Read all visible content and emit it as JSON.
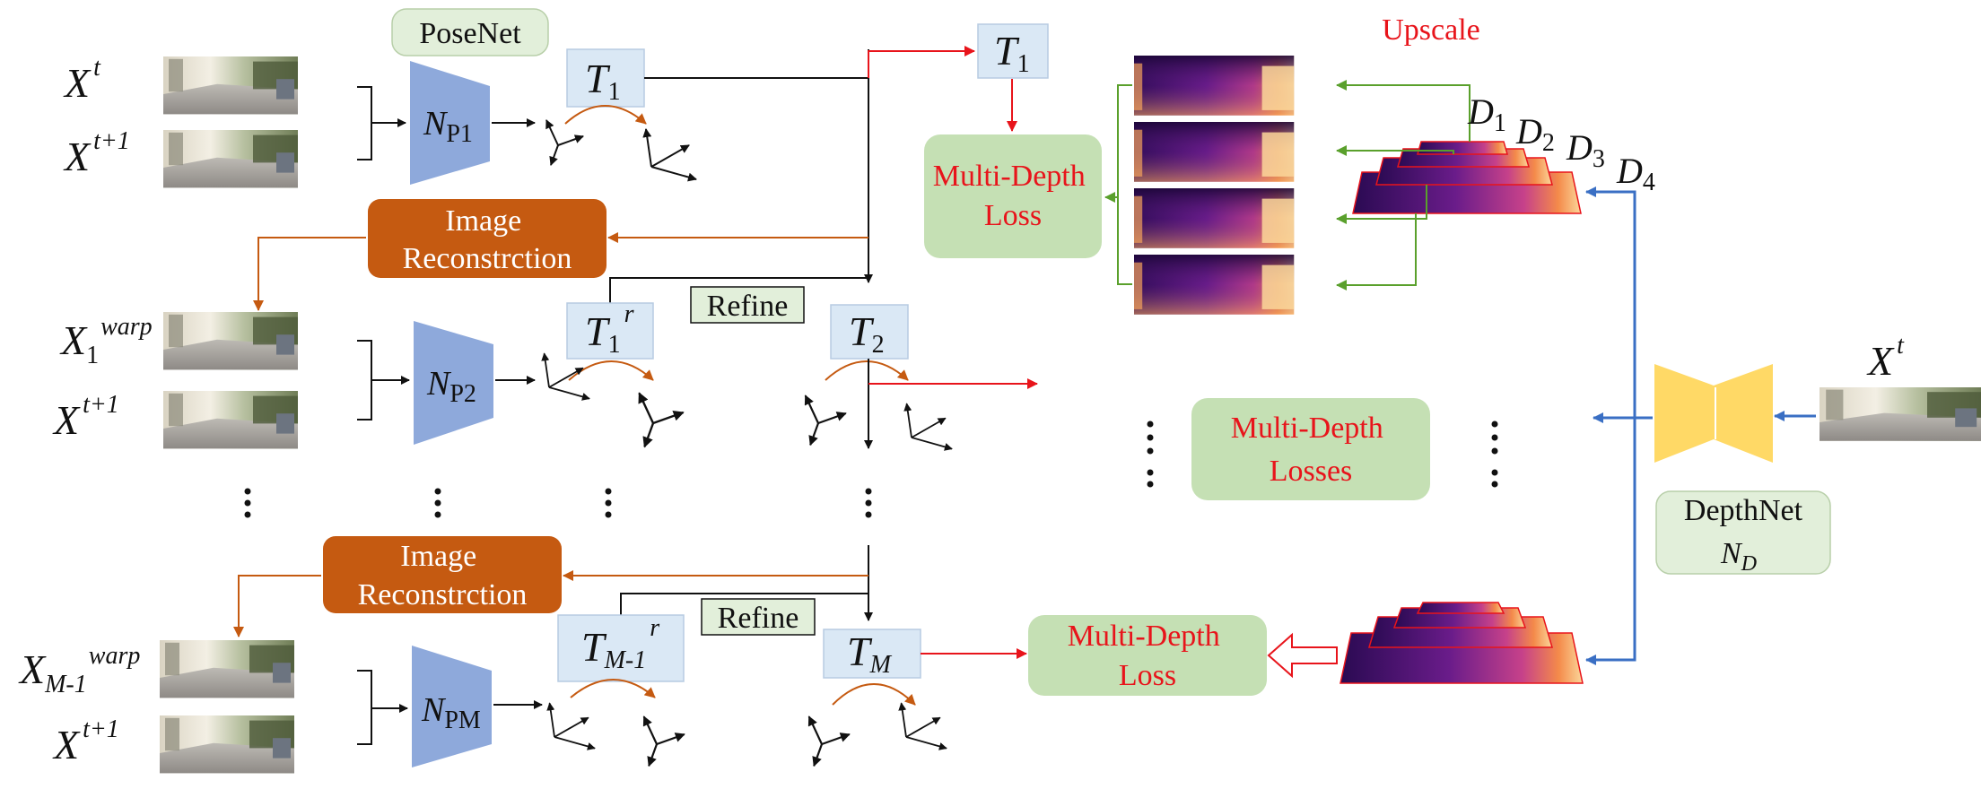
{
  "labels": {
    "posenet": "PoseNet",
    "upscale": "Upscale",
    "image_reconstruction_1": [
      "Image",
      "Reconstrction"
    ],
    "image_reconstruction_2": [
      "Image",
      "Reconstrction"
    ],
    "refine_1": "Refine",
    "refine_2": "Refine",
    "multi_depth_loss_top": [
      "Multi-Depth",
      "Loss"
    ],
    "multi_depth_losses_mid": [
      "Multi-Depth",
      "Losses"
    ],
    "multi_depth_loss_bottom": [
      "Multi-Depth",
      "Loss"
    ],
    "depthnet": "DepthNet"
  },
  "math": {
    "x_t": {
      "base": "X",
      "sup": "t"
    },
    "x_t1_a": {
      "base": "X",
      "sup": "t+1"
    },
    "x_warp_1": {
      "base": "X",
      "sub": "1",
      "sup": "warp"
    },
    "x_t1_b": {
      "base": "X",
      "sup": "t+1"
    },
    "x_warp_m": {
      "base": "X",
      "sub": "M-1",
      "sup": "warp"
    },
    "x_t1_c": {
      "base": "X",
      "sup": "t+1"
    },
    "x_t_right": {
      "base": "X",
      "sup": "t"
    },
    "np1": {
      "base": "N",
      "sub": "P1"
    },
    "np2": {
      "base": "N",
      "sub": "P2"
    },
    "npm": {
      "base": "N",
      "sub": "PM"
    },
    "nd": {
      "base": "N",
      "sub": "D"
    },
    "t1_a": {
      "base": "T",
      "sub": "1"
    },
    "t1_top": {
      "base": "T",
      "sub": "1"
    },
    "t1_r": {
      "base": "T",
      "sub": "1",
      "sup": "r"
    },
    "t2": {
      "base": "T",
      "sub": "2"
    },
    "tm1_r": {
      "base": "T",
      "sub": "M-1",
      "sup": "r"
    },
    "tm": {
      "base": "T",
      "sub": "M"
    },
    "d1": {
      "base": "D",
      "sub": "1"
    },
    "d2": {
      "base": "D",
      "sub": "2"
    },
    "d3": {
      "base": "D",
      "sub": "3"
    },
    "d4": {
      "base": "D",
      "sub": "4"
    }
  },
  "colors": {
    "pose_net": "#8ea9db",
    "depth_net": "#ffd966",
    "recon_box": "#c55a11",
    "loss_box": "#c5e0b4",
    "pose_box": "#dae8f5",
    "arrow_red": "#e8141b",
    "arrow_orange": "#c55a11",
    "arrow_green": "#5aa02c",
    "arrow_blue": "#3a6fc4"
  },
  "icons": [
    "road-scene-image",
    "depth-map-image",
    "coordinate-frame-icon",
    "rotation-arc-icon",
    "ellipsis-vertical-icon"
  ]
}
